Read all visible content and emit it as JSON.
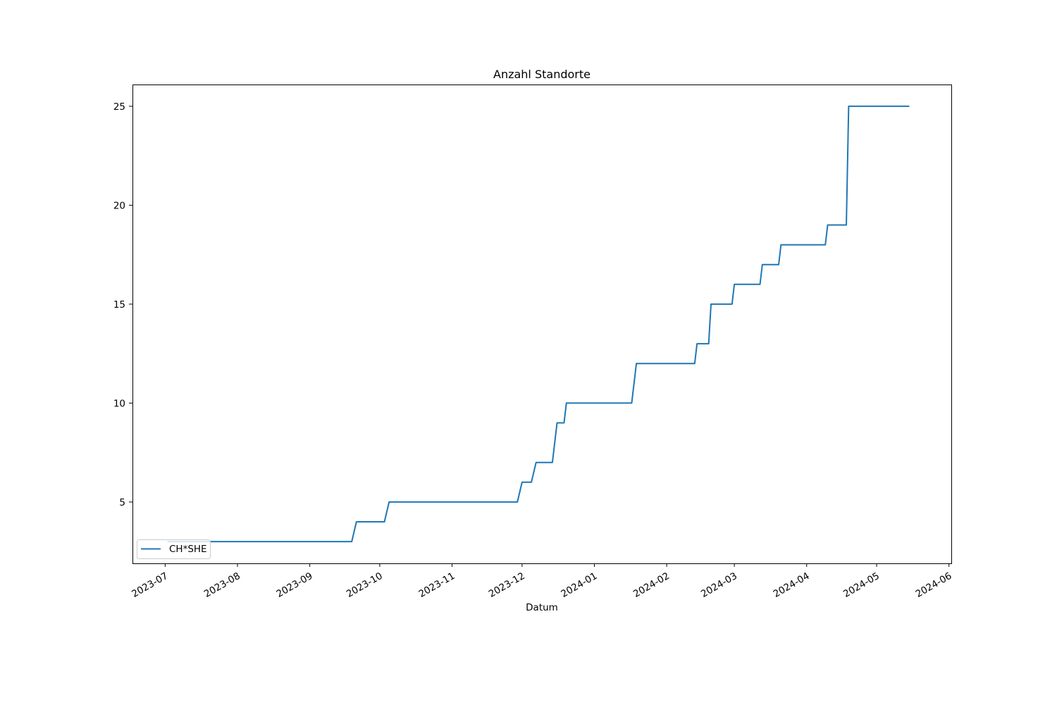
{
  "chart_data": {
    "type": "line",
    "title": "Anzahl Standorte",
    "xlabel": "Datum",
    "ylabel": "",
    "x_axis_type": "date",
    "xlim": [
      "2023-06-17",
      "2024-06-02"
    ],
    "ylim": [
      1.9,
      26.1
    ],
    "x_ticks": [
      "2023-07",
      "2023-08",
      "2023-09",
      "2023-10",
      "2023-11",
      "2023-12",
      "2024-01",
      "2024-02",
      "2024-03",
      "2024-04",
      "2024-05",
      "2024-06"
    ],
    "y_ticks": [
      5,
      10,
      15,
      20,
      25
    ],
    "grid": false,
    "legend": {
      "position": "lower-left"
    },
    "series": [
      {
        "name": "CH*SHE",
        "color": "#1f77b4",
        "points": [
          {
            "x": "2023-07-02",
            "y": 3
          },
          {
            "x": "2023-09-19",
            "y": 3
          },
          {
            "x": "2023-09-21",
            "y": 4
          },
          {
            "x": "2023-10-03",
            "y": 4
          },
          {
            "x": "2023-10-05",
            "y": 5
          },
          {
            "x": "2023-11-29",
            "y": 5
          },
          {
            "x": "2023-12-01",
            "y": 6
          },
          {
            "x": "2023-12-05",
            "y": 6
          },
          {
            "x": "2023-12-07",
            "y": 7
          },
          {
            "x": "2023-12-14",
            "y": 7
          },
          {
            "x": "2023-12-16",
            "y": 9
          },
          {
            "x": "2023-12-19",
            "y": 9
          },
          {
            "x": "2023-12-20",
            "y": 10
          },
          {
            "x": "2024-01-17",
            "y": 10
          },
          {
            "x": "2024-01-19",
            "y": 12
          },
          {
            "x": "2024-02-13",
            "y": 12
          },
          {
            "x": "2024-02-14",
            "y": 13
          },
          {
            "x": "2024-02-19",
            "y": 13
          },
          {
            "x": "2024-02-20",
            "y": 15
          },
          {
            "x": "2024-02-29",
            "y": 15
          },
          {
            "x": "2024-03-01",
            "y": 16
          },
          {
            "x": "2024-03-12",
            "y": 16
          },
          {
            "x": "2024-03-13",
            "y": 17
          },
          {
            "x": "2024-03-20",
            "y": 17
          },
          {
            "x": "2024-03-21",
            "y": 18
          },
          {
            "x": "2024-04-09",
            "y": 18
          },
          {
            "x": "2024-04-10",
            "y": 19
          },
          {
            "x": "2024-04-18",
            "y": 19
          },
          {
            "x": "2024-04-19",
            "y": 25
          },
          {
            "x": "2024-05-15",
            "y": 25
          }
        ]
      }
    ]
  }
}
